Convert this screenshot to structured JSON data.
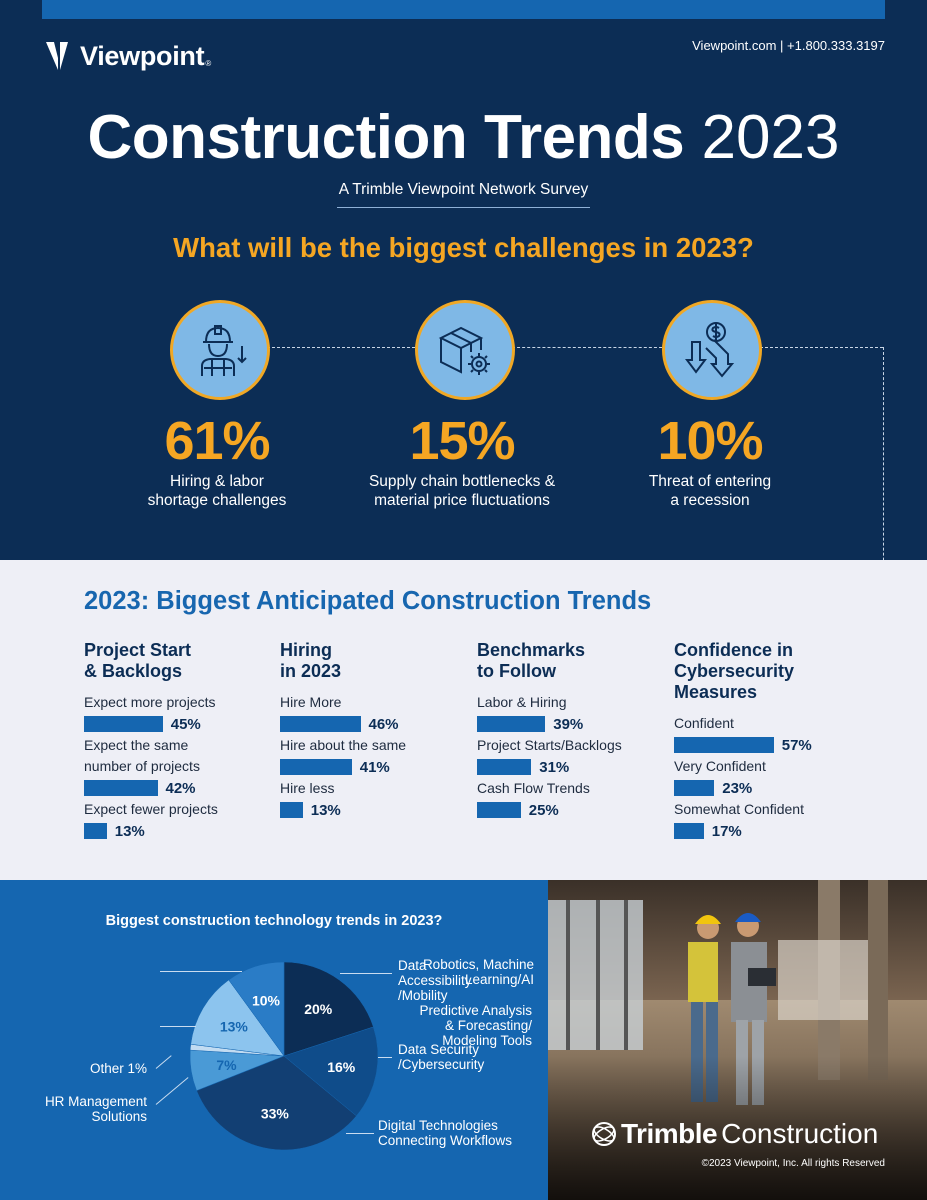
{
  "header": {
    "brand": "Viewpoint",
    "brand_mark": "®",
    "contact": "Viewpoint.com | +1.800.333.3197",
    "title_bold": "Construction Trends",
    "title_year": "2023",
    "subtitle": "A Trimble Viewpoint Network Survey",
    "question": "What will be the biggest challenges in 2023?"
  },
  "challenges": [
    {
      "icon": "construction-worker-icon",
      "pct": "61%",
      "line1": "Hiring & labor",
      "line2": "shortage challenges"
    },
    {
      "icon": "package-gear-icon",
      "pct": "15%",
      "line1": "Supply chain bottlenecks &",
      "line2": "material price fluctuations"
    },
    {
      "icon": "dollar-down-arrows-icon",
      "pct": "10%",
      "line1": "Threat of entering",
      "line2": "a recession"
    }
  ],
  "colors": {
    "navy": "#0c2d55",
    "blue": "#1566b0",
    "orange": "#f5a623",
    "light_bg": "#eeeff6",
    "light_blue": "#7fb8e6"
  },
  "trends": {
    "title": "2023: Biggest Anticipated Construction Trends",
    "columns": [
      {
        "title_line1": "Project Start",
        "title_line2": "& Backlogs",
        "title_line3": "",
        "items": [
          {
            "label": "Expect more projects",
            "value": 45,
            "display": "45%"
          },
          {
            "label": "Expect the same number of projects",
            "value": 42,
            "display": "42%"
          },
          {
            "label": "Expect fewer projects",
            "value": 13,
            "display": "13%"
          }
        ]
      },
      {
        "title_line1": "Hiring",
        "title_line2": "in 2023",
        "title_line3": "",
        "items": [
          {
            "label": "Hire More",
            "value": 46,
            "display": "46%"
          },
          {
            "label": "Hire about the same",
            "value": 41,
            "display": "41%"
          },
          {
            "label": "Hire less",
            "value": 13,
            "display": "13%"
          }
        ]
      },
      {
        "title_line1": "Benchmarks",
        "title_line2": "to Follow",
        "title_line3": "",
        "items": [
          {
            "label": "Labor & Hiring",
            "value": 39,
            "display": "39%"
          },
          {
            "label": "Project Starts/Backlogs",
            "value": 31,
            "display": "31%"
          },
          {
            "label": "Cash Flow Trends",
            "value": 25,
            "display": "25%"
          }
        ]
      },
      {
        "title_line1": "Confidence in",
        "title_line2": "Cybersecurity",
        "title_line3": "Measures",
        "items": [
          {
            "label": "Confident",
            "value": 57,
            "display": "57%"
          },
          {
            "label": "Very Confident",
            "value": 23,
            "display": "23%"
          },
          {
            "label": "Somewhat Confident",
            "value": 17,
            "display": "17%"
          }
        ]
      }
    ]
  },
  "chart_data": {
    "type": "pie",
    "title": "Biggest construction technology trends in 2023?",
    "slices": [
      {
        "label": "Data Accessibility /Mobility",
        "value": 20,
        "display": "20%",
        "color": "#0c2d55"
      },
      {
        "label": "Data Security /Cybersecurity",
        "value": 16,
        "display": "16%",
        "color": "#0f4c8a"
      },
      {
        "label": "Digital Technologies Connecting Workflows",
        "value": 33,
        "display": "33%",
        "color": "#123f73"
      },
      {
        "label": "HR Management Solutions",
        "value": 7,
        "display": "7%",
        "color": "#4a9ad6"
      },
      {
        "label": "Other 1%",
        "value": 1,
        "display": "",
        "color": "#c2dcf2"
      },
      {
        "label": "Predictive Analysis & Forecasting/ Modeling Tools",
        "value": 13,
        "display": "13%",
        "color": "#8cc4ee"
      },
      {
        "label": "Robotics, Machine Learning/AI",
        "value": 10,
        "display": "10%",
        "color": "#2a7cc6"
      }
    ]
  },
  "pie_labels": {
    "data_access": [
      "Data",
      "Accessibility",
      "/Mobility"
    ],
    "data_security": [
      "Data Security",
      "/Cybersecurity"
    ],
    "digital": [
      "Digital Technologies",
      "Connecting Workflows"
    ],
    "hr": [
      "HR Management",
      "Solutions"
    ],
    "other": "Other 1%",
    "predictive": [
      "Predictive Analysis",
      "& Forecasting/",
      "Modeling Tools"
    ],
    "robotics": [
      "Robotics, Machine",
      "Learning/AI"
    ]
  },
  "footer": {
    "brand_bold": "Trimble",
    "brand_light": "Construction",
    "copyright": "©2023 Viewpoint, Inc. All rights Reserved"
  }
}
